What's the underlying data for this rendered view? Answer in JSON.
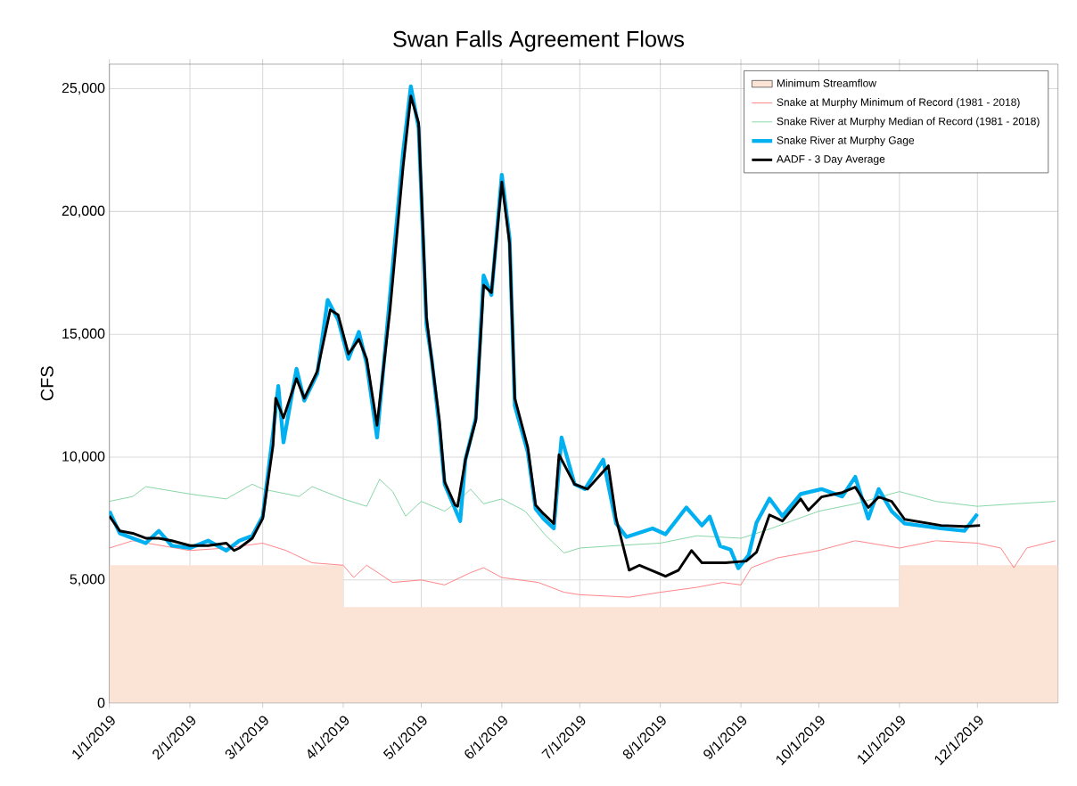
{
  "chart_data": {
    "type": "line",
    "title": "Swan Falls Agreement Flows",
    "ylabel": "CFS",
    "xlim": [
      "2019-01-01",
      "2020-01-01"
    ],
    "xticks": [
      {
        "value": "2019-01-01",
        "label": "1/1/2019"
      },
      {
        "value": "2019-02-01",
        "label": "2/1/2019"
      },
      {
        "value": "2019-03-01",
        "label": "3/1/2019"
      },
      {
        "value": "2019-04-01",
        "label": "4/1/2019"
      },
      {
        "value": "2019-05-01",
        "label": "5/1/2019"
      },
      {
        "value": "2019-06-01",
        "label": "6/1/2019"
      },
      {
        "value": "2019-07-01",
        "label": "7/1/2019"
      },
      {
        "value": "2019-08-01",
        "label": "8/1/2019"
      },
      {
        "value": "2019-09-01",
        "label": "9/1/2019"
      },
      {
        "value": "2019-10-01",
        "label": "10/1/2019"
      },
      {
        "value": "2019-11-01",
        "label": "11/1/2019"
      },
      {
        "value": "2019-12-01",
        "label": "12/1/2019"
      }
    ],
    "ylim": [
      0,
      26000
    ],
    "yticks": [
      0,
      {
        "value": 5000,
        "label": "5,000"
      },
      {
        "value": 10000,
        "label": "10,000"
      },
      {
        "value": 15000,
        "label": "15,000"
      },
      {
        "value": 20000,
        "label": "20,000"
      },
      {
        "value": 25000,
        "label": "25,000"
      }
    ],
    "grid": true,
    "legend": "top right",
    "marker": "none",
    "line_style": "solid",
    "series": [
      {
        "name": "Minimum Streamflow",
        "type": "area",
        "color": "#fbe3d6",
        "x": [
          "2019-01-01",
          "2019-04-01",
          "2019-04-01",
          "2019-11-01",
          "2019-11-01",
          "2020-01-01"
        ],
        "values": [
          5600,
          5600,
          3900,
          3900,
          5600,
          5600
        ]
      },
      {
        "name": "Snake at Murphy Minimum of Record (1981 - 2018)",
        "color": "#ff7c80",
        "x": [
          "2019-01-01",
          "2019-01-10",
          "2019-02-01",
          "2019-02-15",
          "2019-03-01",
          "2019-03-10",
          "2019-03-20",
          "2019-04-01",
          "2019-04-05",
          "2019-04-10",
          "2019-04-20",
          "2019-05-01",
          "2019-05-10",
          "2019-05-20",
          "2019-05-25",
          "2019-06-01",
          "2019-06-15",
          "2019-06-25",
          "2019-07-01",
          "2019-07-20",
          "2019-08-01",
          "2019-08-15",
          "2019-08-25",
          "2019-09-01",
          "2019-09-05",
          "2019-09-15",
          "2019-10-01",
          "2019-10-15",
          "2019-11-01",
          "2019-11-15",
          "2019-12-01",
          "2019-12-10",
          "2019-12-15",
          "2019-12-20",
          "2019-12-31"
        ],
        "values": [
          6300,
          6600,
          6200,
          6300,
          6500,
          6200,
          5700,
          5600,
          5100,
          5600,
          4900,
          5000,
          4800,
          5300,
          5500,
          5100,
          4900,
          4500,
          4400,
          4300,
          4500,
          4700,
          4900,
          4800,
          5500,
          5900,
          6200,
          6600,
          6300,
          6600,
          6500,
          6300,
          5500,
          6300,
          6600
        ]
      },
      {
        "name": "Snake River at Murphy Median of Record (1981 - 2018)",
        "color": "#7fd3a0",
        "x": [
          "2019-01-01",
          "2019-01-10",
          "2019-01-15",
          "2019-02-01",
          "2019-02-15",
          "2019-02-25",
          "2019-03-01",
          "2019-03-15",
          "2019-03-20",
          "2019-04-01",
          "2019-04-10",
          "2019-04-15",
          "2019-04-20",
          "2019-04-25",
          "2019-05-01",
          "2019-05-10",
          "2019-05-15",
          "2019-05-20",
          "2019-05-25",
          "2019-06-01",
          "2019-06-10",
          "2019-06-18",
          "2019-06-25",
          "2019-07-01",
          "2019-07-15",
          "2019-08-01",
          "2019-08-15",
          "2019-09-01",
          "2019-09-10",
          "2019-10-01",
          "2019-10-15",
          "2019-11-01",
          "2019-11-15",
          "2019-12-01",
          "2019-12-15",
          "2019-12-31"
        ],
        "values": [
          8200,
          8400,
          8800,
          8500,
          8300,
          8900,
          8700,
          8400,
          8800,
          8300,
          8000,
          9100,
          8600,
          7600,
          8200,
          7800,
          8200,
          8700,
          8100,
          8300,
          7800,
          6800,
          6100,
          6300,
          6400,
          6500,
          6800,
          6700,
          7000,
          7800,
          8100,
          8600,
          8200,
          8000,
          8100,
          8200
        ]
      },
      {
        "name": "Snake River at Murphy Gage",
        "color": "#00b0f0",
        "x": [
          "2019-01-01",
          "2019-01-05",
          "2019-01-10",
          "2019-01-15",
          "2019-01-20",
          "2019-01-25",
          "2019-02-01",
          "2019-02-08",
          "2019-02-15",
          "2019-02-20",
          "2019-02-25",
          "2019-03-01",
          "2019-03-05",
          "2019-03-07",
          "2019-03-09",
          "2019-03-14",
          "2019-03-17",
          "2019-03-22",
          "2019-03-26",
          "2019-03-30",
          "2019-04-03",
          "2019-04-07",
          "2019-04-10",
          "2019-04-14",
          "2019-04-19",
          "2019-04-24",
          "2019-04-27",
          "2019-04-30",
          "2019-05-03",
          "2019-05-05",
          "2019-05-08",
          "2019-05-10",
          "2019-05-14",
          "2019-05-16",
          "2019-05-18",
          "2019-05-22",
          "2019-05-25",
          "2019-05-28",
          "2019-06-01",
          "2019-06-04",
          "2019-06-06",
          "2019-06-11",
          "2019-06-14",
          "2019-06-17",
          "2019-06-21",
          "2019-06-24",
          "2019-06-29",
          "2019-07-03",
          "2019-07-10",
          "2019-07-15",
          "2019-07-19",
          "2019-07-29",
          "2019-08-03",
          "2019-08-11",
          "2019-08-17",
          "2019-08-20",
          "2019-08-24",
          "2019-08-28",
          "2019-08-31",
          "2019-09-04",
          "2019-09-07",
          "2019-09-12",
          "2019-09-17",
          "2019-09-24",
          "2019-10-02",
          "2019-10-10",
          "2019-10-15",
          "2019-10-20",
          "2019-10-24",
          "2019-10-29",
          "2019-11-03",
          "2019-11-17",
          "2019-11-26",
          "2019-12-01"
        ],
        "values": [
          7800,
          6900,
          6700,
          6500,
          7000,
          6400,
          6300,
          6600,
          6200,
          6600,
          6800,
          7600,
          11000,
          12900,
          10600,
          13600,
          12300,
          13400,
          16400,
          15600,
          14000,
          15100,
          13800,
          10800,
          16600,
          22400,
          25100,
          23400,
          15400,
          14000,
          11200,
          8900,
          7900,
          7400,
          9900,
          11600,
          17400,
          16600,
          21500,
          18900,
          12100,
          10200,
          7900,
          7500,
          7100,
          10800,
          8900,
          8700,
          9900,
          7300,
          6750,
          7100,
          6860,
          7950,
          7220,
          7580,
          6380,
          6240,
          5480,
          6020,
          7330,
          8310,
          7600,
          8500,
          8700,
          8400,
          9200,
          7500,
          8700,
          7800,
          7300,
          7100,
          7000,
          7690
        ]
      },
      {
        "name": "AADF - 3 Day Average",
        "color": "#000000",
        "x": [
          "2019-01-01",
          "2019-01-05",
          "2019-01-10",
          "2019-01-15",
          "2019-01-20",
          "2019-01-25",
          "2019-02-01",
          "2019-02-08",
          "2019-02-15",
          "2019-02-18",
          "2019-02-20",
          "2019-02-25",
          "2019-03-01",
          "2019-03-05",
          "2019-03-06",
          "2019-03-09",
          "2019-03-14",
          "2019-03-17",
          "2019-03-22",
          "2019-03-27",
          "2019-03-30",
          "2019-04-03",
          "2019-04-07",
          "2019-04-10",
          "2019-04-14",
          "2019-04-19",
          "2019-04-24",
          "2019-04-27",
          "2019-04-30",
          "2019-05-03",
          "2019-05-05",
          "2019-05-08",
          "2019-05-10",
          "2019-05-14",
          "2019-05-15",
          "2019-05-18",
          "2019-05-22",
          "2019-05-25",
          "2019-05-28",
          "2019-06-01",
          "2019-06-04",
          "2019-06-06",
          "2019-06-11",
          "2019-06-14",
          "2019-06-17",
          "2019-06-21",
          "2019-06-23",
          "2019-06-29",
          "2019-07-04",
          "2019-07-12",
          "2019-07-15",
          "2019-07-20",
          "2019-07-24",
          "2019-08-03",
          "2019-08-08",
          "2019-08-13",
          "2019-08-17",
          "2019-08-26",
          "2019-09-03",
          "2019-09-07",
          "2019-09-12",
          "2019-09-17",
          "2019-09-24",
          "2019-09-27",
          "2019-10-02",
          "2019-10-10",
          "2019-10-15",
          "2019-10-20",
          "2019-10-24",
          "2019-10-29",
          "2019-11-03",
          "2019-11-17",
          "2019-11-26",
          "2019-12-02"
        ],
        "values": [
          7600,
          7000,
          6900,
          6700,
          6700,
          6600,
          6400,
          6400,
          6500,
          6200,
          6300,
          6700,
          7500,
          10500,
          12400,
          11600,
          13200,
          12400,
          13500,
          16000,
          15800,
          14200,
          14800,
          14000,
          11300,
          16000,
          21800,
          24700,
          23600,
          15700,
          14000,
          11500,
          9000,
          8050,
          8000,
          9900,
          11500,
          17000,
          16700,
          21200,
          18700,
          12400,
          10400,
          8050,
          7700,
          7300,
          10100,
          8900,
          8700,
          9650,
          7500,
          5400,
          5600,
          5150,
          5400,
          6200,
          5700,
          5700,
          5770,
          6130,
          7650,
          7400,
          8300,
          7840,
          8380,
          8560,
          8780,
          7950,
          8380,
          8200,
          7470,
          7220,
          7180,
          7220
        ]
      }
    ]
  }
}
